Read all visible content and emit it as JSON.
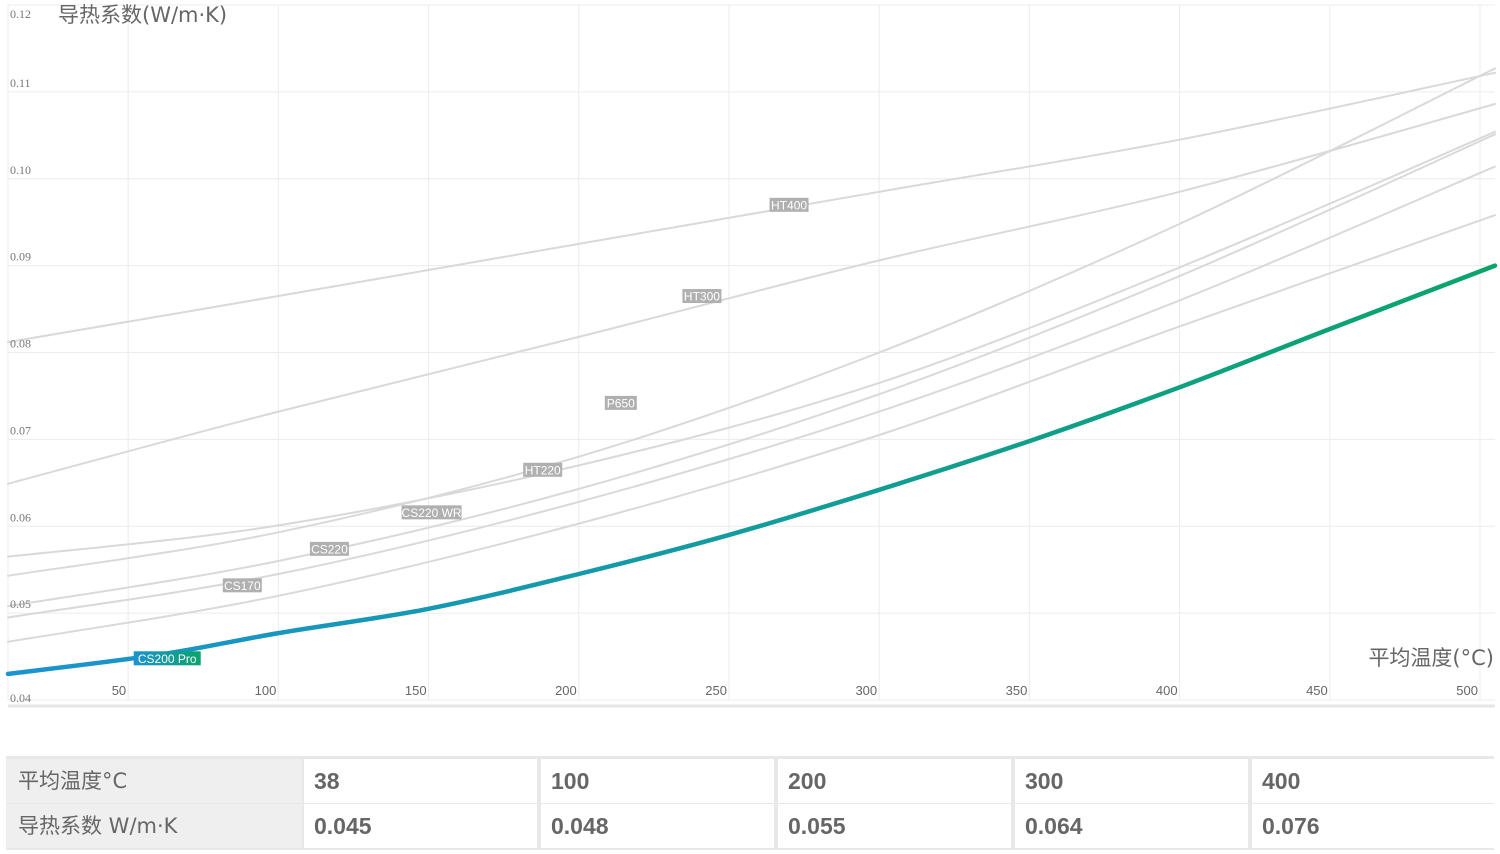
{
  "chart_data": {
    "type": "line",
    "ylabel": "导热系数(W/m·K)",
    "xlabel": "平均温度(°C)",
    "xlim": [
      10,
      505
    ],
    "ylim": [
      0.04,
      0.12
    ],
    "x_ticks": [
      50,
      100,
      150,
      200,
      250,
      300,
      350,
      400,
      450,
      500
    ],
    "y_ticks": [
      "0.04",
      "0.05",
      "0.06",
      "0.07",
      "0.08",
      "0.09",
      "0.10",
      "0.11",
      "0.12"
    ],
    "grid": true,
    "series": [
      {
        "name": "HT400",
        "color": "#d9d9d9",
        "points": [
          [
            10,
            0.0812
          ],
          [
            100,
            0.0865
          ],
          [
            200,
            0.0925
          ],
          [
            300,
            0.0985
          ],
          [
            400,
            0.1045
          ],
          [
            505,
            0.1122
          ]
        ]
      },
      {
        "name": "HT300",
        "color": "#d9d9d9",
        "points": [
          [
            10,
            0.0649
          ],
          [
            100,
            0.0732
          ],
          [
            200,
            0.0818
          ],
          [
            300,
            0.0906
          ],
          [
            400,
            0.0985
          ],
          [
            505,
            0.1086
          ]
        ]
      },
      {
        "name": "P650",
        "color": "#d9d9d9",
        "points": [
          [
            10,
            0.0543
          ],
          [
            100,
            0.0593
          ],
          [
            200,
            0.068
          ],
          [
            300,
            0.08
          ],
          [
            400,
            0.0948
          ],
          [
            505,
            0.1127
          ]
        ]
      },
      {
        "name": "HT220",
        "color": "#d9d9d9",
        "points": [
          [
            10,
            0.0565
          ],
          [
            100,
            0.0601
          ],
          [
            200,
            0.067
          ],
          [
            300,
            0.0765
          ],
          [
            400,
            0.0898
          ],
          [
            505,
            0.1054
          ]
        ]
      },
      {
        "name": "CS220 WR",
        "color": "#d9d9d9",
        "points": [
          [
            10,
            0.0508
          ],
          [
            100,
            0.056
          ],
          [
            200,
            0.0643
          ],
          [
            300,
            0.0752
          ],
          [
            400,
            0.0888
          ],
          [
            505,
            0.1051
          ]
        ]
      },
      {
        "name": "CS220",
        "color": "#d9d9d9",
        "points": [
          [
            10,
            0.0495
          ],
          [
            100,
            0.0545
          ],
          [
            200,
            0.0628
          ],
          [
            300,
            0.0732
          ],
          [
            400,
            0.086
          ],
          [
            505,
            0.1014
          ]
        ]
      },
      {
        "name": "CS170",
        "color": "#d9d9d9",
        "points": [
          [
            10,
            0.0467
          ],
          [
            100,
            0.052
          ],
          [
            200,
            0.0603
          ],
          [
            300,
            0.0705
          ],
          [
            400,
            0.083
          ],
          [
            505,
            0.0958
          ]
        ]
      },
      {
        "name": "CS200 Pro",
        "color": "#1b93d0",
        "highlight": true,
        "points": [
          [
            10,
            0.043
          ],
          [
            60,
            0.0452
          ],
          [
            100,
            0.0477
          ],
          [
            150,
            0.0505
          ],
          [
            200,
            0.0545
          ],
          [
            250,
            0.059
          ],
          [
            300,
            0.0642
          ],
          [
            350,
            0.0698
          ],
          [
            400,
            0.076
          ],
          [
            450,
            0.0827
          ],
          [
            505,
            0.09
          ]
        ]
      }
    ],
    "labels": [
      {
        "text": "HT400",
        "x": 270,
        "y": 0.097
      },
      {
        "text": "HT300",
        "x": 241,
        "y": 0.0865
      },
      {
        "text": "P650",
        "x": 214,
        "y": 0.0742
      },
      {
        "text": "HT220",
        "x": 188,
        "y": 0.0665
      },
      {
        "text": "CS220 WR",
        "x": 151,
        "y": 0.0616
      },
      {
        "text": "CS220",
        "x": 117,
        "y": 0.0574
      },
      {
        "text": "CS170",
        "x": 88,
        "y": 0.0532
      },
      {
        "text": "CS200 Pro",
        "x": 63,
        "y": 0.0448
      }
    ]
  },
  "table": {
    "row_headers": [
      "平均温度°C",
      "导热系数 W/m·K"
    ],
    "temperatures": [
      "38",
      "100",
      "200",
      "300",
      "400"
    ],
    "conductivity": [
      "0.045",
      "0.048",
      "0.055",
      "0.064",
      "0.076"
    ]
  },
  "colors": {
    "grid": "#ececec",
    "muted_line": "#d9d9d9",
    "label_bg": "#b0b0b0",
    "gradient_start": "#1b93d0",
    "gradient_end": "#0aa46a"
  }
}
